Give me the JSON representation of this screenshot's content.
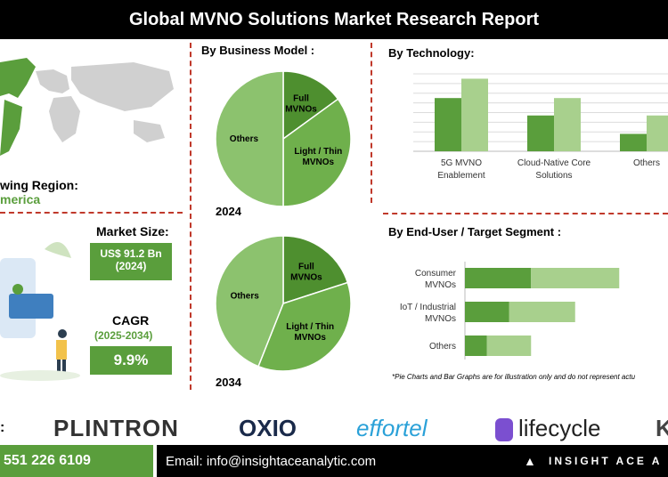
{
  "header": {
    "title": "Global MVNO Solutions Market Research Report"
  },
  "region": {
    "label": "wing Region:",
    "value": "merica"
  },
  "market_size": {
    "label": "Market Size:",
    "value": "US$ 91.2 Bn",
    "year": "(2024)"
  },
  "cagr": {
    "label": "CAGR",
    "period": "(2025-2034)",
    "value": "9.9%"
  },
  "business_model": {
    "title": "By Business Model :"
  },
  "technology": {
    "title": "By Technology:"
  },
  "end_user": {
    "title": "By End-User / Target Segment :"
  },
  "note": "*Pie Charts and Bar Graphs are for illustration only and do not represent actu",
  "logos": {
    "l1": "PLINTRON",
    "l2": "OXIO",
    "l3": "effortel",
    "l4": "lifecycle",
    "l5": "K"
  },
  "players_label": ":",
  "footer": {
    "phone": "551 226 6109",
    "email": "Email: info@insightaceanalytic.com",
    "brand": "INSIGHT ACE A"
  },
  "colors": {
    "dark_green": "#5a9e3c",
    "mid_green": "#6fb04c",
    "light_green": "#a8d08d"
  },
  "chart_data": [
    {
      "type": "pie",
      "title": "2024",
      "labels": [
        "Full MVNOs",
        "Light / Thin MVNOs",
        "Others"
      ],
      "values": [
        15,
        35,
        50
      ],
      "colors": [
        "#4e8f2f",
        "#6fb04c",
        "#8cc26e"
      ]
    },
    {
      "type": "pie",
      "title": "2034",
      "labels": [
        "Full MVNOs",
        "Light / Thin MVNOs",
        "Others"
      ],
      "values": [
        20,
        36,
        44
      ],
      "colors": [
        "#4e8f2f",
        "#6fb04c",
        "#8cc26e"
      ]
    },
    {
      "type": "bar",
      "categories": [
        "5G MVNO Enablement",
        "Cloud-Native Core Solutions",
        "Others"
      ],
      "series": [
        {
          "values": [
            5.5,
            3.7,
            1.8
          ],
          "color": "#5a9e3c"
        },
        {
          "values": [
            7.5,
            5.5,
            3.7
          ],
          "color": "#a8d08d"
        }
      ],
      "ylim": [
        0,
        8
      ],
      "grid": true
    },
    {
      "type": "bar",
      "orientation": "horizontal",
      "categories": [
        "Consumer MVNOs",
        "IoT / Industrial MVNOs",
        "Others"
      ],
      "series": [
        {
          "values": [
            7.5,
            5.0,
            2.5
          ],
          "color": "#5a9e3c"
        },
        {
          "values": [
            10.0,
            7.5,
            5.0
          ],
          "color": "#a8d08d"
        }
      ],
      "stacked": true
    }
  ]
}
